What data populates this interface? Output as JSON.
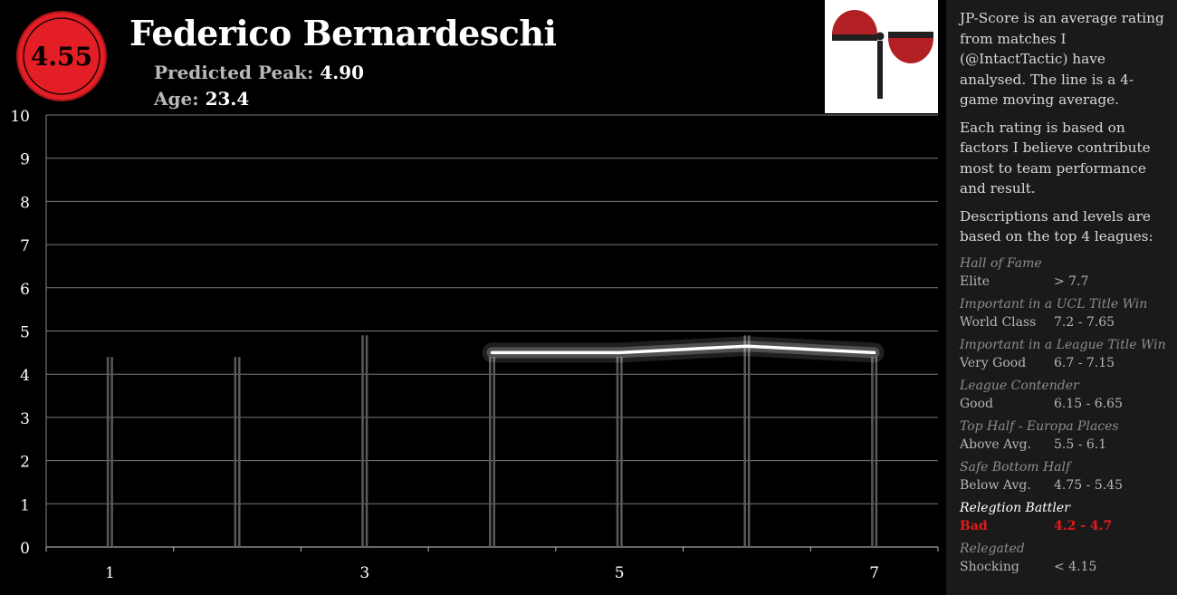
{
  "header": {
    "score": "4.55",
    "player_name": "Federico Bernardeschi",
    "peak_label": "Predicted Peak:",
    "peak_value": "4.90",
    "age_label": "Age:",
    "age_value": "23.4"
  },
  "colors": {
    "badge": "#e31e24",
    "background": "#000000",
    "sidebar_bg": "#1a1a1a",
    "bar": "#5a5a5a",
    "line": "#ffffff",
    "highlight": "#e51a1a",
    "logo_red": "#b32024",
    "logo_dark": "#231f20"
  },
  "sidebar": {
    "paragraphs": [
      "JP-Score is an average rating from matches I (@IntactTactic) have analysed. The line is a 4-game moving average.",
      "Each rating is based on factors I believe contribute most to team performance and result.",
      "Descriptions and levels are based on the top 4 leagues:"
    ],
    "levels": [
      {
        "title": "Hall of Fame",
        "name": "Elite",
        "range": "> 7.7"
      },
      {
        "title": "Important in a UCL Title Win",
        "name": "World Class",
        "range": "7.2 - 7.65"
      },
      {
        "title": "Important in a League Title Win",
        "name": "Very Good",
        "range": "6.7 - 7.15"
      },
      {
        "title": "League Contender",
        "name": "Good",
        "range": "6.15 - 6.65"
      },
      {
        "title": "Top Half - Europa Places",
        "name": "Above Avg.",
        "range": "5.5 - 6.1"
      },
      {
        "title": "Safe Bottom Half",
        "name": "Below Avg.",
        "range": "4.75 - 5.45"
      },
      {
        "title": "Relegtion Battler",
        "name": "Bad",
        "range": "4.2 - 4.7",
        "active": true
      },
      {
        "title": "Relegated",
        "name": "Shocking",
        "range": "< 4.15"
      }
    ]
  },
  "chart_data": {
    "type": "bar",
    "x": [
      1,
      2,
      3,
      4,
      5,
      6,
      7
    ],
    "x_tick_labels": [
      "1",
      "",
      "3",
      "",
      "5",
      "",
      "7"
    ],
    "ylim": [
      0,
      10
    ],
    "y_ticks": [
      "0",
      "1",
      "2",
      "3",
      "4",
      "5",
      "6",
      "7",
      "8",
      "9",
      "10"
    ],
    "grid": true,
    "series": [
      {
        "type": "bar",
        "values": [
          4.4,
          4.4,
          4.9,
          4.4,
          4.4,
          4.9,
          4.4
        ]
      },
      {
        "type": "line",
        "x": [
          4,
          5,
          6,
          7
        ],
        "values": [
          4.5,
          4.5,
          4.65,
          4.5
        ]
      }
    ]
  }
}
